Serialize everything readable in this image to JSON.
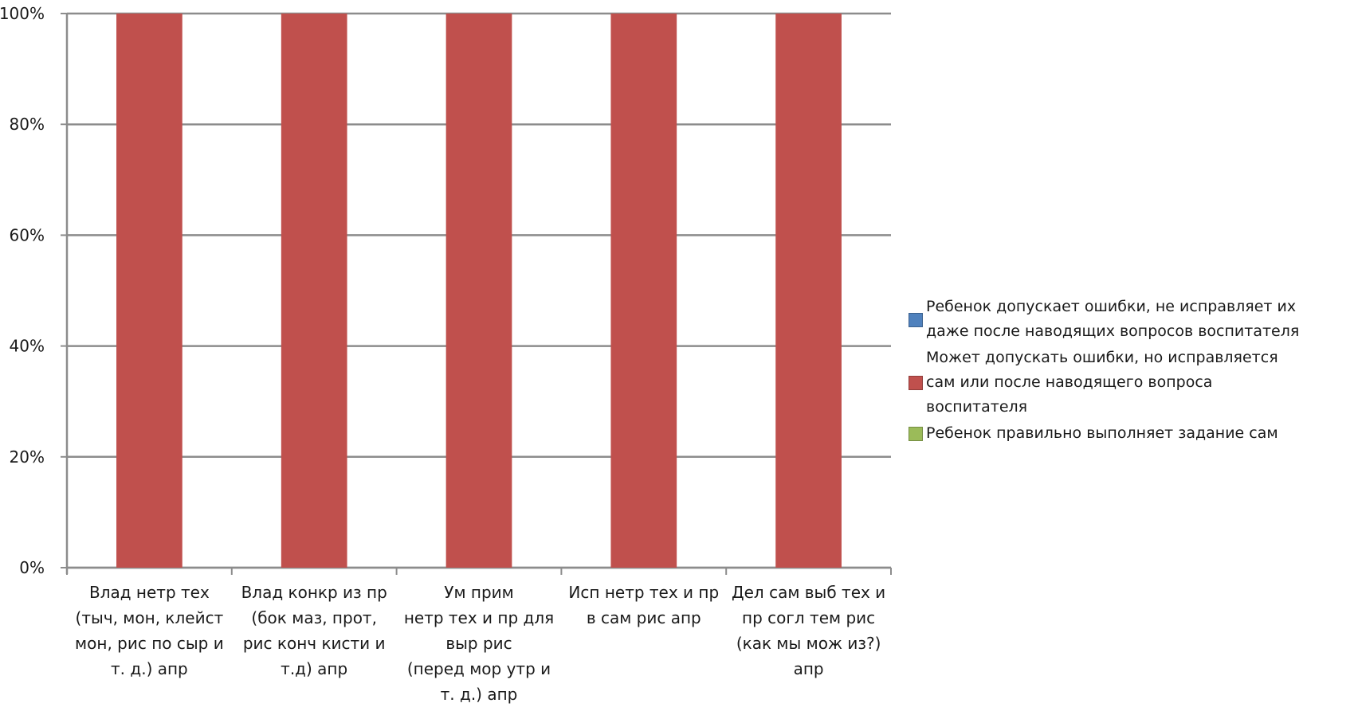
{
  "chart_data": {
    "type": "bar",
    "stacked": "percent",
    "categories": [
      "Влад нетр тех (тыч, мон, клейст мон, рис по сыр и т. д.) апр",
      "Влад конкр из пр (бок маз, прот, рис конч кисти и т.д) апр",
      "Ум прим нетр тех и пр для выр рис (перед мор утр и т. д.) апр",
      "Исп нетр тех и пр в сам рис апр",
      "Дел сам выб тех и пр согл тем рис (как мы мож из?) апр"
    ],
    "category_lines": [
      [
        "Влад нетр тех",
        "(тыч, мон, клейст",
        "мон, рис по сыр и",
        "т. д.) апр"
      ],
      [
        "Влад конкр из пр",
        "(бок маз, прот,",
        "рис конч кисти и",
        "т.д)  апр"
      ],
      [
        "Ум прим",
        "нетр тех и пр для",
        "выр рис",
        "(перед мор утр и",
        "т. д.) апр"
      ],
      [
        "Исп нетр тех и пр",
        "в сам рис апр"
      ],
      [
        "Дел сам выб тех и",
        "пр согл тем рис",
        "(как мы мож из?)",
        "апр"
      ]
    ],
    "series": [
      {
        "name": "Ребенок допускает ошибки, не исправляет их даже после наводящих вопросов воспитателя",
        "color": "#4f81bd",
        "values": [
          0,
          0,
          0,
          0,
          0
        ]
      },
      {
        "name": "Может допускать ошибки, но исправляется сам или после наводящего вопроса воспитателя",
        "color": "#c0504d",
        "values": [
          100,
          100,
          100,
          100,
          100
        ]
      },
      {
        "name": "Ребенок правильно выполняет задание сам",
        "color": "#9bbb59",
        "values": [
          0,
          0,
          0,
          0,
          0
        ]
      }
    ],
    "ylim": [
      0,
      100
    ],
    "yticks": [
      "0%",
      "20%",
      "40%",
      "60%",
      "80%",
      "100%"
    ],
    "grid": true,
    "legend": "right"
  },
  "legend": {
    "items": [
      {
        "lines": [
          "Ребенок допускает ошибки, не исправляет их",
          "даже после наводящих вопросов воспитателя"
        ],
        "color": "#4f81bd"
      },
      {
        "lines": [
          "Может допускать ошибки, но исправляется",
          "сам или после наводящего вопроса",
          "воспитателя"
        ],
        "color": "#c0504d"
      },
      {
        "lines": [
          "Ребенок правильно выполняет задание сам"
        ],
        "color": "#9bbb59"
      }
    ]
  }
}
